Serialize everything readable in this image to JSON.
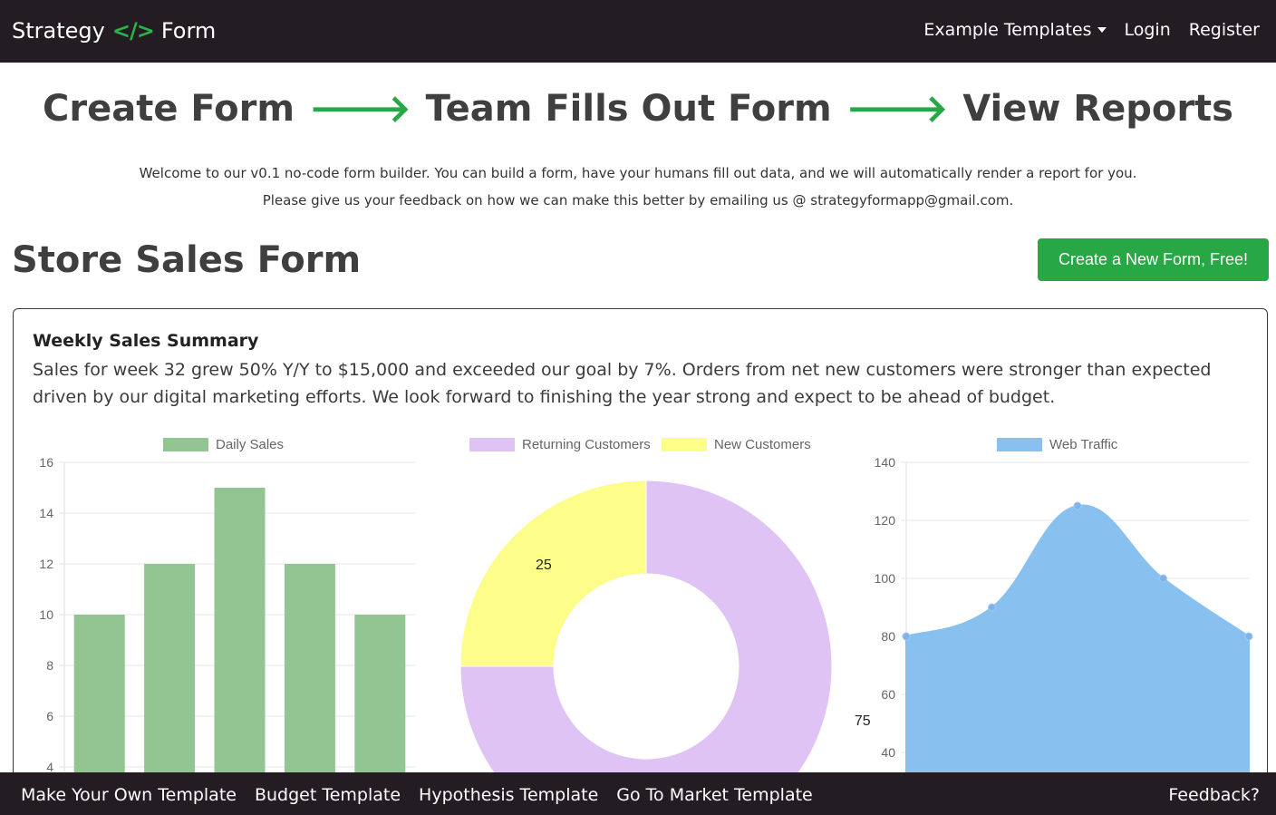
{
  "navbar": {
    "brand_left": "Strategy",
    "brand_icon": "</>",
    "brand_right": "Form",
    "links": [
      "Example Templates",
      "Login",
      "Register"
    ]
  },
  "hero": {
    "step1": "Create Form",
    "step2": "Team Fills Out Form",
    "step3": "View Reports",
    "arrow": "🡒"
  },
  "intro": {
    "line1": "Welcome to our v0.1 no-code form builder. You can build a form, have your humans fill out data, and we will automatically render a report for you.",
    "line2": "Please give us your feedback on how we can make this better by emailing us @ strategyformapp@gmail.com."
  },
  "page": {
    "title": "Store Sales Form",
    "cta_label": "Create a New Form, Free!"
  },
  "summary": {
    "title": "Weekly Sales Summary",
    "text": "Sales for week 32 grew 50% Y/Y to $15,000 and exceeded our goal by 7%. Orders from net new customers were stronger than expected driven by our digital marketing efforts. We look forward to finishing the year strong and expect to be ahead of budget."
  },
  "colors": {
    "bar": "#93c593",
    "returning": "#e0c3f5",
    "new": "#fdfd8a",
    "web": "#88c0f0",
    "green": "#28a745"
  },
  "chart_data": [
    {
      "type": "bar",
      "series": [
        {
          "name": "Daily Sales",
          "values": [
            10,
            12,
            15,
            12,
            10
          ]
        }
      ],
      "yticks": [
        "16",
        "14",
        "12",
        "10",
        "8",
        "6",
        "4"
      ],
      "ylim": [
        4,
        16
      ],
      "legend": "top"
    },
    {
      "type": "pie",
      "labels": [
        "Returning Customers",
        "New Customers"
      ],
      "values": [
        75,
        25
      ],
      "data_labels": [
        "75",
        "25"
      ],
      "legend": "top"
    },
    {
      "type": "area",
      "series": [
        {
          "name": "Web Traffic",
          "values": [
            80,
            90,
            125,
            100,
            80
          ]
        }
      ],
      "yticks": [
        "140",
        "120",
        "100",
        "80",
        "60",
        "40"
      ],
      "ylim": [
        40,
        140
      ],
      "legend": "top"
    }
  ],
  "footer": {
    "links": [
      "Make Your Own Template",
      "Budget Template",
      "Hypothesis Template",
      "Go To Market Template"
    ],
    "right": "Feedback?"
  }
}
